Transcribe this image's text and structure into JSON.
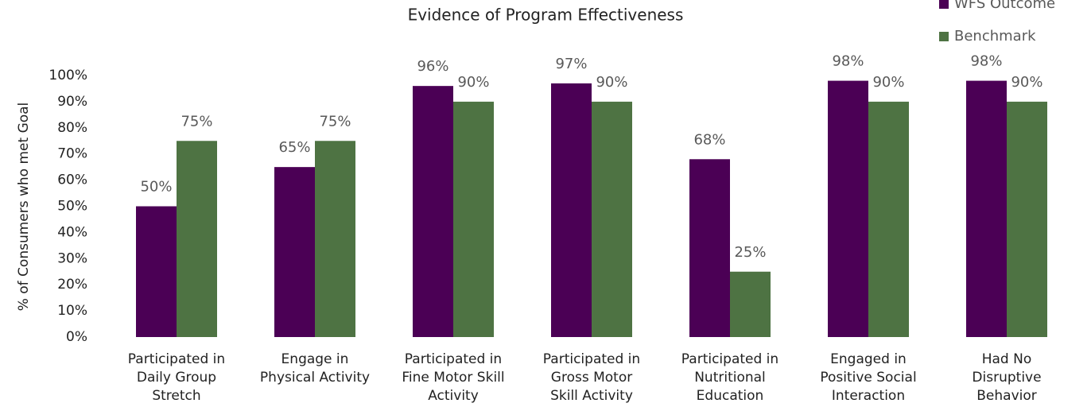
{
  "chart_data": {
    "type": "bar",
    "title": "Evidence of Program Effectiveness",
    "y_label": "% of Consumers who met Goal",
    "categories": [
      "Participated in\nDaily Group\nStretch",
      "Engage in\nPhysical Activity",
      "Participated in\nFine Motor Skill\nActivity",
      "Participated in\nGross Motor\nSkill Activity",
      "Participated in\nNutritional\nEducation",
      "Engaged in\nPositive Social\nInteraction",
      "Had No\nDisruptive\nBehavior"
    ],
    "series": [
      {
        "name": "WFS Outcome",
        "color": "#4b0055",
        "values": [
          50,
          65,
          96,
          97,
          68,
          98,
          98
        ],
        "value_labels": [
          "50%",
          "65%",
          "96%",
          "97%",
          "68%",
          "98%",
          "98%"
        ]
      },
      {
        "name": "Benchmark",
        "color": "#4e7343",
        "values": [
          75,
          75,
          90,
          90,
          25,
          90,
          90
        ],
        "value_labels": [
          "75%",
          "75%",
          "90%",
          "90%",
          "25%",
          "90%",
          "90%"
        ]
      }
    ],
    "ylim": [
      0,
      100
    ],
    "yticks": [
      {
        "value": 0,
        "label": "0%"
      },
      {
        "value": 10,
        "label": "10%"
      },
      {
        "value": 20,
        "label": "20%"
      },
      {
        "value": 30,
        "label": "30%"
      },
      {
        "value": 40,
        "label": "40%"
      },
      {
        "value": 50,
        "label": "50%"
      },
      {
        "value": 60,
        "label": "60%"
      },
      {
        "value": 70,
        "label": "70%"
      },
      {
        "value": 80,
        "label": "80%"
      },
      {
        "value": 90,
        "label": "90%"
      },
      {
        "value": 100,
        "label": "100%"
      }
    ],
    "grid": false,
    "legend": "top-right"
  }
}
